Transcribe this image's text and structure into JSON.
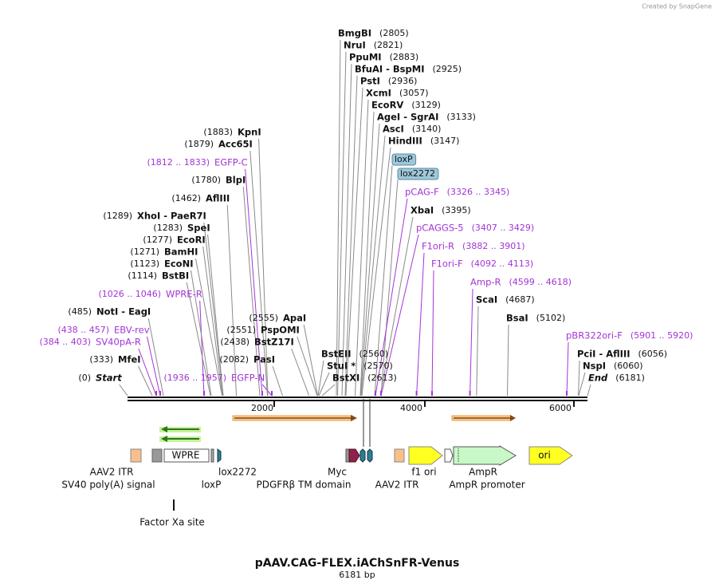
{
  "header": {
    "watermark": "Created by SnapGene"
  },
  "labels": [
    {
      "name": "BmgBI",
      "position": "(2805)"
    },
    {
      "name": "NruI",
      "position": "(2821)"
    },
    {
      "name": "PpuMI",
      "position": "(2883)"
    },
    {
      "name": "BfuAI  -  BspMI",
      "position": "(2925)"
    },
    {
      "name": "PstI",
      "position": "(2936)"
    },
    {
      "name": "XcmI",
      "position": "(3057)"
    },
    {
      "name": "EcoRV",
      "position": "(3129)"
    },
    {
      "name": "AgeI  -  SgrAI",
      "position": "(3133)"
    },
    {
      "name": "AscI",
      "position": "(3140)"
    },
    {
      "name": "HindIII",
      "position": "(3147)"
    },
    {
      "name": "pCAG-F",
      "position": "(3326 .. 3345)"
    },
    {
      "name": "XbaI",
      "position": "(3395)"
    },
    {
      "name": "pCAGGS-5",
      "position": "(3407 .. 3429)"
    },
    {
      "name": "F1ori-R",
      "position": "(3882 .. 3901)"
    },
    {
      "name": "F1ori-F",
      "position": "(4092 .. 4113)"
    },
    {
      "name": "Amp-R",
      "position": "(4599 .. 4618)"
    },
    {
      "name": "ScaI",
      "position": "(4687)"
    },
    {
      "name": "BsaI",
      "position": "(5102)"
    },
    {
      "name": "pBR322ori-F",
      "position": "(5901 .. 5920)"
    },
    {
      "name": "PciI  -  AflIII",
      "position": "(6056)"
    },
    {
      "name": "NspI",
      "position": "(6060)"
    },
    {
      "name": "End",
      "position": "(6181)"
    },
    {
      "name": "BstEII",
      "position": "(2560)"
    },
    {
      "name": "StuI *",
      "position": "(2570)"
    },
    {
      "name": "BstXI",
      "position": "(2613)"
    },
    {
      "name": "KpnI",
      "position": "(1883)"
    },
    {
      "name": "Acc65I",
      "position": "(1879)"
    },
    {
      "name": "EGFP-C",
      "position": "(1812 .. 1833)"
    },
    {
      "name": "BlpI",
      "position": "(1780)"
    },
    {
      "name": "AflIII",
      "position": "(1462)"
    },
    {
      "name": "XhoI  -  PaeR7I",
      "position": "(1289)"
    },
    {
      "name": "SpeI",
      "position": "(1283)"
    },
    {
      "name": "EcoRI",
      "position": "(1277)"
    },
    {
      "name": "BamHI",
      "position": "(1271)"
    },
    {
      "name": "EcoNI",
      "position": "(1123)"
    },
    {
      "name": "BstBI",
      "position": "(1114)"
    },
    {
      "name": "WPRE-R",
      "position": "(1026 .. 1046)"
    },
    {
      "name": "NotI  -  EagI",
      "position": "(485)"
    },
    {
      "name": "EBV-rev",
      "position": "(438 .. 457)"
    },
    {
      "name": "SV40pA-R",
      "position": "(384 .. 403)"
    },
    {
      "name": "MfeI",
      "position": "(333)"
    },
    {
      "name": "Start",
      "position": "(0)"
    },
    {
      "name": "ApaI",
      "position": "(2555)"
    },
    {
      "name": "PspOMI",
      "position": "(2551)"
    },
    {
      "name": "BstZ17I",
      "position": "(2438)"
    },
    {
      "name": "PasI",
      "position": "(2082)"
    },
    {
      "name": "EGFP-N",
      "position": "(1936 .. 1957)"
    }
  ],
  "tags": [
    "loxP",
    "lox2272"
  ],
  "map": {
    "ticks": [
      "2000",
      "4000",
      "6000"
    ]
  },
  "features": [
    "AAV2 ITR",
    "SV40 poly(A) signal",
    "WPRE",
    "loxP",
    "lox2272",
    "Myc",
    "PDGFRβ TM domain",
    "AAV2 ITR",
    "f1 ori",
    "AmpR",
    "AmpR promoter",
    "ori",
    "Factor Xa site"
  ],
  "footer": {
    "title": "pAAV.CAG-FLEX.iAChSnFR-Venus",
    "length": "6181 bp"
  }
}
